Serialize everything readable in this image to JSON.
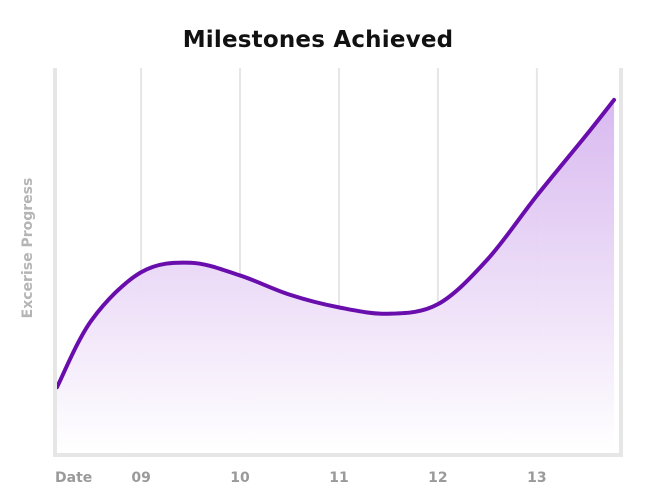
{
  "chart_data": {
    "type": "area",
    "title": "Milestones Achieved",
    "xlabel": "Date",
    "ylabel": "Excerise Progress",
    "categories": [
      "09",
      "10",
      "11",
      "12",
      "13"
    ],
    "x": [
      8.15,
      8.5,
      9.0,
      9.5,
      10.0,
      10.5,
      11.0,
      11.5,
      12.0,
      12.5,
      13.0,
      13.5,
      13.78
    ],
    "values": [
      20,
      41,
      56,
      59,
      55,
      49,
      45,
      43,
      46,
      60,
      80,
      99,
      110
    ],
    "xlim": [
      8.13,
      13.82
    ],
    "ylim": [
      0,
      120
    ],
    "grid": "vertical",
    "legend": "none",
    "colors": {
      "line": "#6a0dad",
      "fill_top": "#d7b6ef",
      "fill_bottom": "#ffffff",
      "grid": "#e6e6e6",
      "axis": "#e6e6e6",
      "tick_text": "#9a9a9a",
      "title_text": "#111111",
      "ylabel_text": "#b5b5b5"
    }
  }
}
